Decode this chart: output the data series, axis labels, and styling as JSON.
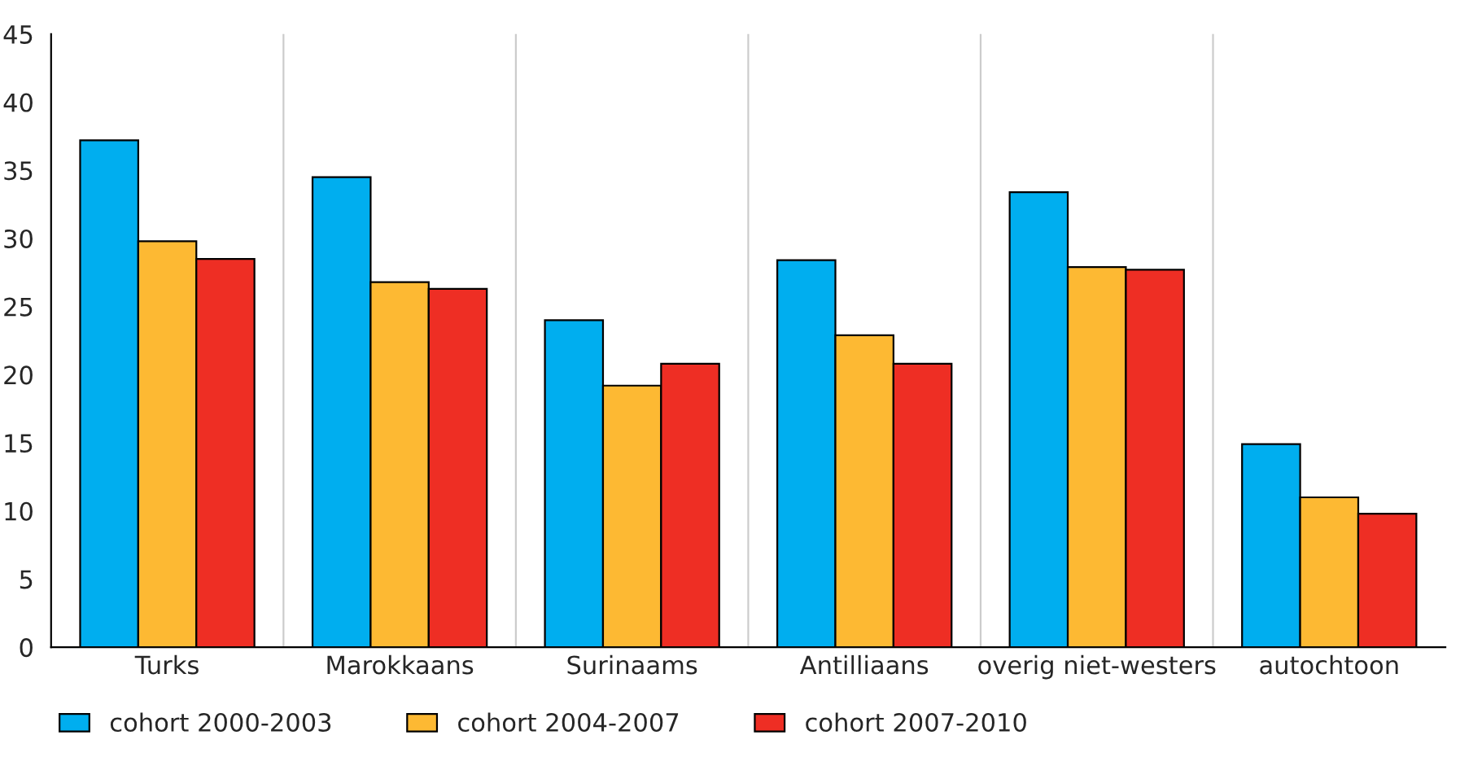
{
  "chart_data": {
    "type": "bar",
    "categories": [
      "Turks",
      "Marokkaans",
      "Surinaams",
      "Antilliaans",
      "overig niet-westers",
      "autochtoon"
    ],
    "series": [
      {
        "name": "cohort 2000-2003",
        "color": "#00aeef",
        "values": [
          37.2,
          34.5,
          24.0,
          28.4,
          33.4,
          14.9
        ]
      },
      {
        "name": "cohort 2004-2007",
        "color": "#fdb933",
        "values": [
          29.8,
          26.8,
          19.2,
          22.9,
          27.9,
          11.0
        ]
      },
      {
        "name": "cohort 2007-2010",
        "color": "#ee2e24",
        "values": [
          28.5,
          26.3,
          20.8,
          20.8,
          27.7,
          9.8
        ]
      }
    ],
    "ylim": [
      0,
      45
    ],
    "yticks": [
      0,
      5,
      10,
      15,
      20,
      25,
      30,
      35,
      40,
      45
    ],
    "grid": "x",
    "legend": "bottom"
  }
}
